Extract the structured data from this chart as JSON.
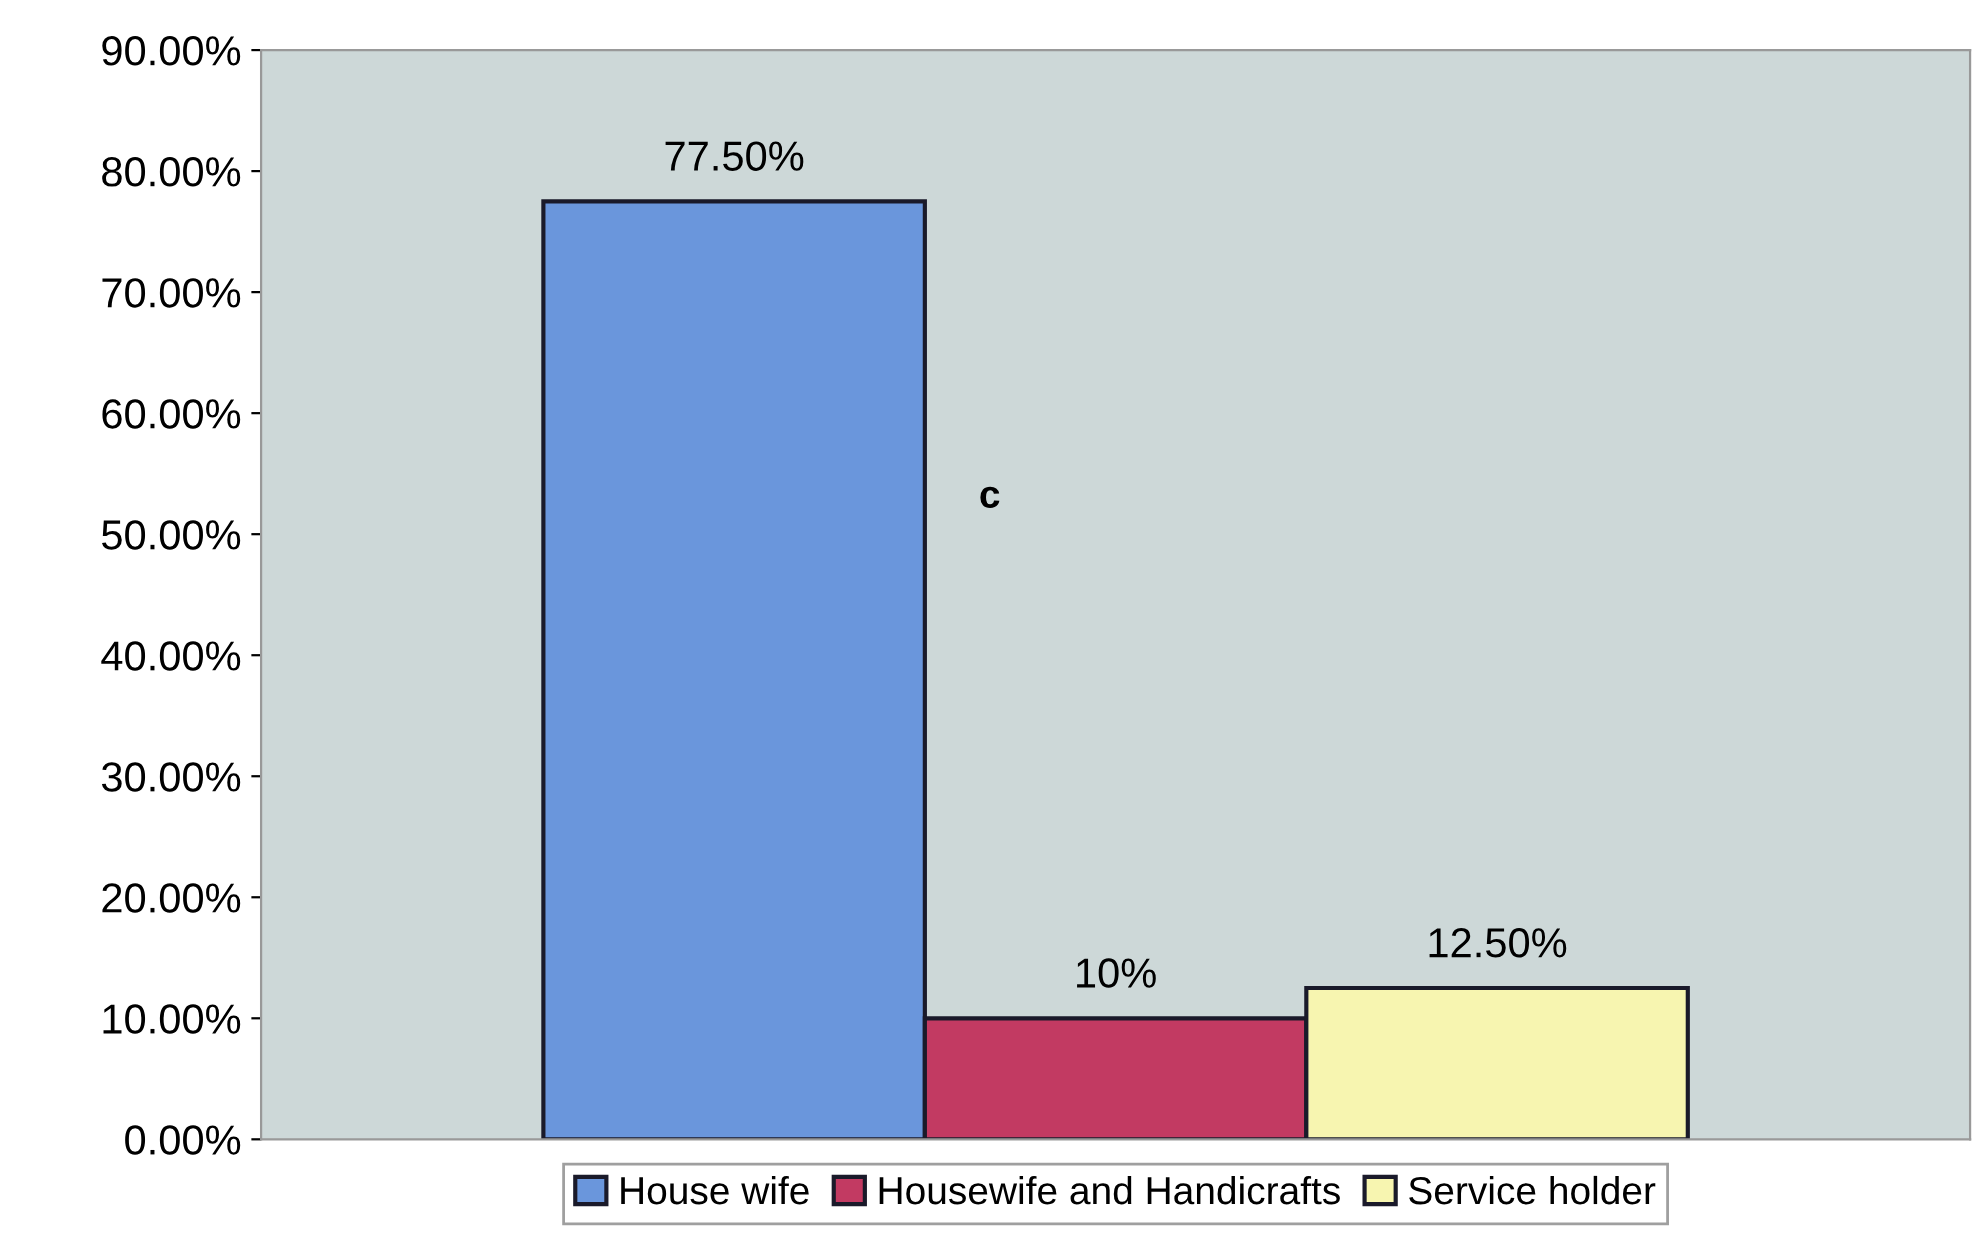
{
  "chart_data": {
    "type": "bar",
    "categories": [
      null
    ],
    "series": [
      {
        "name": "House wife",
        "color": "#6a96dc",
        "values": [
          77.5
        ],
        "value_labels": [
          "77.50%"
        ]
      },
      {
        "name": "Housewife and Handicrafts",
        "color": "#c23a62",
        "values": [
          10
        ],
        "value_labels": [
          "10%"
        ]
      },
      {
        "name": "Service holder",
        "color": "#f7f5b0",
        "values": [
          12.5
        ],
        "value_labels": [
          "12.50%"
        ]
      }
    ],
    "ylim": [
      0,
      90
    ],
    "yticks": [
      {
        "value": 0,
        "label": "0.00%"
      },
      {
        "value": 10,
        "label": "10.00%"
      },
      {
        "value": 20,
        "label": "20.00%"
      },
      {
        "value": 30,
        "label": "30.00%"
      },
      {
        "value": 40,
        "label": "40.00%"
      },
      {
        "value": 50,
        "label": "50.00%"
      },
      {
        "value": 60,
        "label": "60.00%"
      },
      {
        "value": 70,
        "label": "70.00%"
      },
      {
        "value": 80,
        "label": "80.00%"
      },
      {
        "value": 90,
        "label": "90.00%"
      }
    ],
    "annotations": [
      "c"
    ],
    "grid": false,
    "legend": "bottom"
  }
}
